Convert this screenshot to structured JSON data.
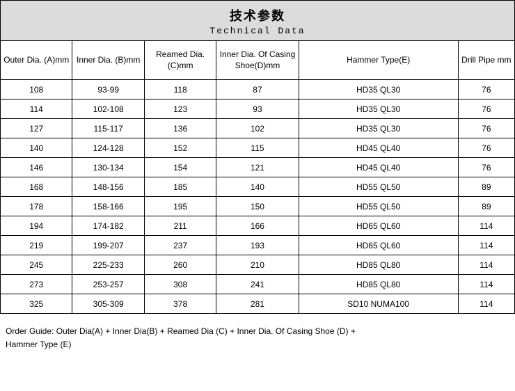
{
  "header": {
    "title_cn": "技术参数",
    "title_en": "Technical Data"
  },
  "columns": [
    "Outer Dia. (A)mm",
    "Inner Dia. (B)mm",
    "Reamed Dia. (C)mm",
    "Inner Dia. Of Casing Shoe(D)mm",
    "Hammer Type(E)",
    "Drill Pipe mm"
  ],
  "rows": [
    [
      "108",
      "93-99",
      "118",
      "87",
      "HD35  QL30",
      "76"
    ],
    [
      "114",
      "102-108",
      "123",
      "93",
      "HD35  QL30",
      "76"
    ],
    [
      "127",
      "115-117",
      "136",
      "102",
      "HD35  QL30",
      "76"
    ],
    [
      "140",
      "124-128",
      "152",
      "115",
      "HD45  QL40",
      "76"
    ],
    [
      "146",
      "130-134",
      "154",
      "121",
      "HD45  QL40",
      "76"
    ],
    [
      "168",
      "148-156",
      "185",
      "140",
      "HD55  QL50",
      "89"
    ],
    [
      "178",
      "158-166",
      "195",
      "150",
      "HD55  QL50",
      "89"
    ],
    [
      "194",
      "174-182",
      "211",
      "166",
      "HD65  QL60",
      "114"
    ],
    [
      "219",
      "199-207",
      "237",
      "193",
      "HD65  QL60",
      "114"
    ],
    [
      "245",
      "225-233",
      "260",
      "210",
      "HD85  QL80",
      "114"
    ],
    [
      "273",
      "253-257",
      "308",
      "241",
      "HD85  QL80",
      "114"
    ],
    [
      "325",
      "305-309",
      "378",
      "281",
      "SD10  NUMA100",
      "114"
    ]
  ],
  "footer": {
    "line1": "Order Guide: Outer Dia(A) + Inner Dia(B) + Reamed Dia (C) + Inner Dia. Of Casing Shoe (D) +",
    "line2": "Hammer Type (E)"
  },
  "style": {
    "header_bg": "#dcdcdc",
    "border_color": "#000000",
    "bg_color": "#ffffff",
    "font_size_header_cn": 18,
    "font_size_header_en": 13,
    "font_size_cell": 12,
    "col_widths_pct": [
      14,
      14,
      14,
      16,
      31,
      11
    ]
  }
}
